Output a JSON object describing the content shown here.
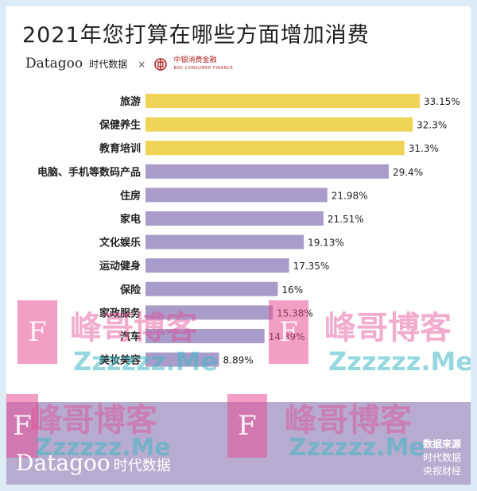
{
  "title": "2021年您打算在哪些方面增加消费",
  "brand": {
    "name": "Datagoo",
    "name_cn": "时代数据",
    "separator": "×",
    "partner": "中银消费金融",
    "partner_sub": "BOC CONSUMER FINANCE"
  },
  "footer": {
    "logo": "Datagoo",
    "logo_cn": "时代数据",
    "source_title": "数据来源",
    "source_lines": [
      "时代数据",
      "央视财经"
    ]
  },
  "watermark": {
    "text": "峰哥博客",
    "url": "Zzzzzz.Me",
    "letter": "F"
  },
  "colors": {
    "highlight": "#f0d457",
    "normal": "#a99cca",
    "background": "#dcebf6"
  },
  "chart_data": {
    "type": "bar",
    "orientation": "horizontal",
    "categories": [
      "旅游",
      "保健养生",
      "教育培训",
      "电脑、手机等数码产品",
      "住房",
      "家电",
      "文化娱乐",
      "运动健身",
      "保险",
      "家政服务",
      "汽车",
      "美妆美容"
    ],
    "values": [
      33.15,
      32.3,
      31.3,
      29.4,
      21.98,
      21.51,
      19.13,
      17.35,
      16,
      15.38,
      14.39,
      8.89
    ],
    "value_labels": [
      "33.15%",
      "32.3%",
      "31.3%",
      "29.4%",
      "21.98%",
      "21.51%",
      "19.13%",
      "17.35%",
      "16%",
      "15.38%",
      "14.39%",
      "8.89%"
    ],
    "highlight_count": 3,
    "xlim": [
      0,
      33.15
    ],
    "unit": "%",
    "grid": false,
    "legend": "none"
  }
}
